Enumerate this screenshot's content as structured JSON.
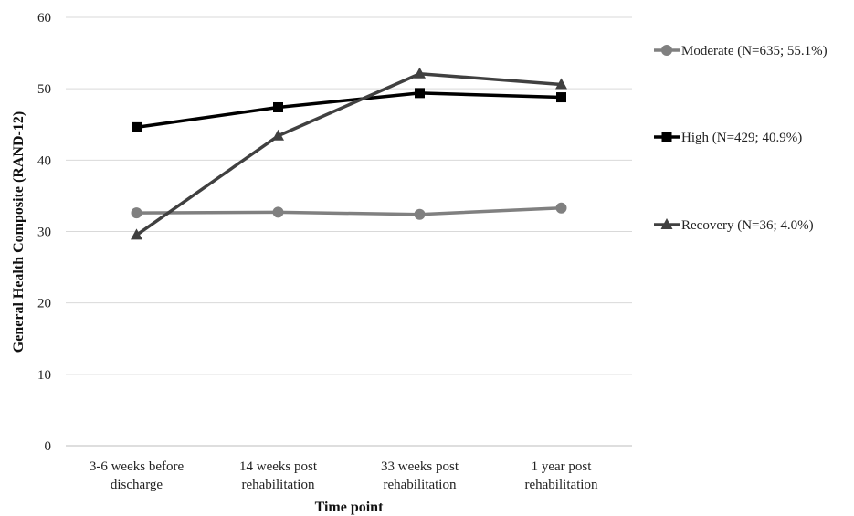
{
  "chart_data": {
    "type": "line",
    "title": "",
    "xlabel": "Time point",
    "ylabel": "General Health Composite (RAND-12)",
    "ylim": [
      0,
      60
    ],
    "yticks": [
      0,
      10,
      20,
      30,
      40,
      50,
      60
    ],
    "grid": "horizontal",
    "legend_position": "right",
    "categories": [
      [
        "3-6 weeks before",
        "discharge"
      ],
      [
        "14 weeks post",
        "rehabilitation"
      ],
      [
        "33 weeks post",
        "rehabilitation"
      ],
      [
        "1 year post",
        "rehabilitation"
      ]
    ],
    "series": [
      {
        "name": "Moderate (N=635; 55.1%)",
        "values": [
          32.6,
          32.7,
          32.4,
          33.3
        ],
        "color": "#808080",
        "marker": "circle"
      },
      {
        "name": "High (N=429; 40.9%)",
        "values": [
          44.6,
          47.4,
          49.4,
          48.8
        ],
        "color": "#000000",
        "marker": "square"
      },
      {
        "name": "Recovery (N=36; 4.0%)",
        "values": [
          29.5,
          43.4,
          52.1,
          50.6
        ],
        "color": "#404040",
        "marker": "triangle"
      }
    ]
  }
}
